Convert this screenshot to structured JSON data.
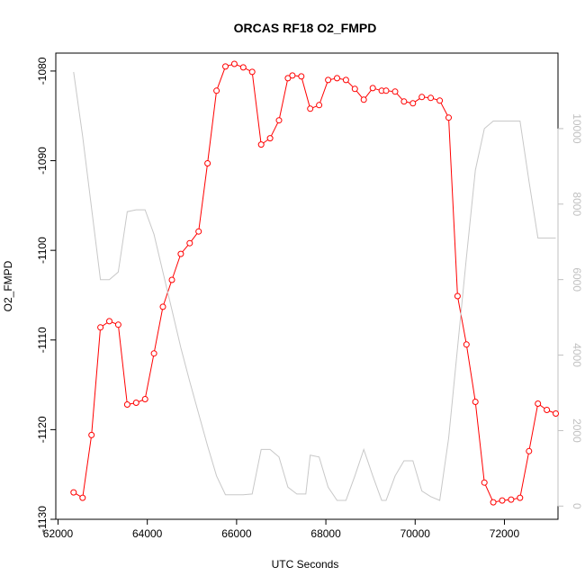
{
  "chart_data": {
    "type": "line",
    "title": "ORCAS RF18 O2_FMPD",
    "xlabel": "UTC Seconds",
    "ylabel": "O2_FMPD",
    "xlim": [
      61950,
      73200
    ],
    "ylim": [
      -1130,
      -1078
    ],
    "y2lim": [
      -350,
      12000
    ],
    "x_ticks": [
      62000,
      64000,
      66000,
      68000,
      70000,
      72000
    ],
    "y_ticks": [
      -1130,
      -1120,
      -1110,
      -1100,
      -1090,
      -1080
    ],
    "y2_ticks": [
      0,
      2000,
      4000,
      6000,
      8000,
      10000
    ],
    "grid": false,
    "colors": {
      "primary": "#ff0000",
      "secondary": "#c8c8c8",
      "axis_right": "#c0c0c0"
    },
    "series": [
      {
        "axis": "left",
        "style": "line-points",
        "x": [
          62350,
          62550,
          62750,
          62950,
          63150,
          63350,
          63550,
          63750,
          63950,
          64150,
          64350,
          64550,
          64750,
          64950,
          65150,
          65350,
          65550,
          65750,
          65950,
          66150,
          66350,
          66550,
          66750,
          66950,
          67150,
          67250,
          67450,
          67650,
          67850,
          68050,
          68250,
          68450,
          68650,
          68850,
          69050,
          69250,
          69350,
          69550,
          69750,
          69950,
          70150,
          70350,
          70550,
          70750,
          70950,
          71150,
          71350,
          71550,
          71750,
          71950,
          72150,
          72350,
          72550,
          72750,
          72950,
          73150
        ],
        "y": [
          -1127.0,
          -1127.6,
          -1120.6,
          -1108.6,
          -1107.9,
          -1108.3,
          -1117.2,
          -1117.0,
          -1116.6,
          -1111.5,
          -1106.3,
          -1103.3,
          -1100.4,
          -1099.2,
          -1097.9,
          -1090.3,
          -1082.2,
          -1079.5,
          -1079.2,
          -1079.6,
          -1080.1,
          -1088.2,
          -1087.5,
          -1085.5,
          -1080.8,
          -1080.5,
          -1080.6,
          -1084.2,
          -1083.8,
          -1081.0,
          -1080.8,
          -1081.0,
          -1082.0,
          -1083.2,
          -1081.9,
          -1082.2,
          -1082.2,
          -1082.3,
          -1083.4,
          -1083.6,
          -1082.9,
          -1083.0,
          -1083.3,
          -1085.2,
          -1105.1,
          -1110.5,
          -1116.9,
          -1125.9,
          -1128.1,
          -1127.9,
          -1127.8,
          -1127.6,
          -1122.4,
          -1117.1,
          -1117.8,
          -1118.2
        ]
      },
      {
        "axis": "right",
        "style": "line",
        "x": [
          62350,
          62550,
          62950,
          63150,
          63350,
          63550,
          63750,
          63950,
          64150,
          64350,
          64550,
          64750,
          64950,
          65150,
          65350,
          65550,
          65750,
          65950,
          66150,
          66350,
          66550,
          66750,
          66950,
          67150,
          67350,
          67550,
          67650,
          67850,
          68050,
          68250,
          68450,
          68650,
          68850,
          69050,
          69250,
          69350,
          69550,
          69750,
          69950,
          70150,
          70350,
          70550,
          70750,
          70950,
          71150,
          71350,
          71550,
          71750,
          71950,
          72150,
          72350,
          72550,
          72750,
          72950,
          73150
        ],
        "y": [
          11500,
          9800,
          6000,
          6000,
          6200,
          7800,
          7850,
          7850,
          7200,
          6200,
          5200,
          4200,
          3300,
          2450,
          1600,
          800,
          300,
          300,
          300,
          320,
          1500,
          1500,
          1300,
          500,
          320,
          320,
          1350,
          1300,
          500,
          150,
          150,
          800,
          1500,
          800,
          150,
          150,
          800,
          1200,
          1200,
          400,
          250,
          150,
          1800,
          4200,
          6600,
          8900,
          10000,
          10200,
          10200,
          10200,
          10200,
          8600,
          7100,
          7100,
          7100
        ]
      }
    ]
  }
}
